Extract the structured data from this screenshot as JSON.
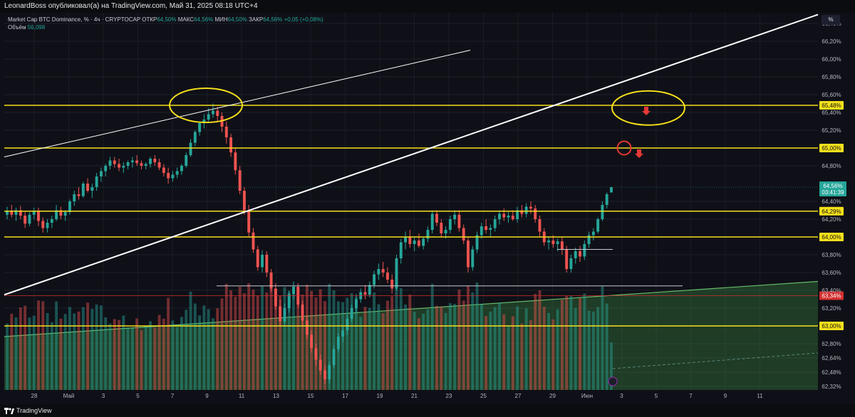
{
  "header": {
    "publish_line": "LeonardBoss опубликовал(а) на TradingView.com, Май 31, 2025 08:18 UTC+4"
  },
  "legend": {
    "symbol": "Market Cap BTC Dominance, % · 4ч · CRYPTOCAP",
    "open_label": "ОТКР",
    "open_value": "64,50%",
    "high_label": "МАКС",
    "high_value": "64,56%",
    "low_label": "МИН",
    "low_value": "64,50%",
    "close_label": "ЗАКР",
    "close_value": "64,56%",
    "change": "+0,05 (+0,08%)",
    "volume_label": "Объём",
    "volume_value": "56,098"
  },
  "unit_label": "%",
  "footer": {
    "brand": "TradingView"
  },
  "colors": {
    "background": "#0f1017",
    "up": "#26a69a",
    "down": "#ef5350",
    "horizontal_level": "#f5e01b",
    "trendline": "#ffffff",
    "support_zone": "#4caf50",
    "red_level": "#d32f2f",
    "price_badge": "#26a69a"
  },
  "chart_data": {
    "type": "candlestick",
    "title": "Market Cap BTC Dominance, % · 4ч · CRYPTOCAP",
    "y_unit": "%",
    "ylim": [
      62.28,
      66.52
    ],
    "y_ticks": [
      "66,40%",
      "66,20%",
      "66,00%",
      "65,80%",
      "65,60%",
      "65,40%",
      "65,20%",
      "64,80%",
      "64,40%",
      "64,20%",
      "63,80%",
      "63,60%",
      "63,40%",
      "63,20%",
      "62,80%",
      "62,64%",
      "62,48%",
      "62,32%"
    ],
    "x_ticks": [
      "28",
      "Май",
      "3",
      "5",
      "7",
      "9",
      "11",
      "13",
      "15",
      "17",
      "19",
      "21",
      "23",
      "25",
      "27",
      "29",
      "Июн",
      "3",
      "5",
      "7",
      "9",
      "11"
    ],
    "horizontal_levels": [
      {
        "value": 65.48,
        "label": "65,48%",
        "color": "#f5e01b"
      },
      {
        "value": 65.0,
        "label": "65,00%",
        "color": "#f5e01b"
      },
      {
        "value": 64.29,
        "label": "64,29%",
        "color": "#f5e01b"
      },
      {
        "value": 64.0,
        "label": "64,00%",
        "color": "#f5e01b"
      },
      {
        "value": 63.0,
        "label": "63,00%",
        "color": "#f5e01b"
      },
      {
        "value": 63.34,
        "label": "63,34%",
        "color": "#d32f2f"
      }
    ],
    "last_price": {
      "value": 64.56,
      "label": "64,56%",
      "countdown": "03:41:39"
    },
    "trendlines": [
      {
        "name": "main-ascending",
        "from": {
          "x": "Apr 26",
          "y": 63.35
        },
        "to": {
          "x": "Jun 11",
          "y": 66.5
        }
      },
      {
        "name": "upper-thin",
        "from": {
          "x": "Apr 26",
          "y": 64.9
        },
        "to": {
          "x": "May 24",
          "y": 66.1
        }
      }
    ],
    "support_zone_top": {
      "from": {
        "x": "Apr 26",
        "y": 62.88
      },
      "to": {
        "x": "Jun 11",
        "y": 63.5
      }
    },
    "series": [
      {
        "type": "candles",
        "ohlc": [
          [
            64.25,
            64.34,
            64.2,
            64.29
          ],
          [
            64.29,
            64.36,
            64.22,
            64.25
          ],
          [
            64.25,
            64.33,
            64.18,
            64.3
          ],
          [
            64.3,
            64.35,
            64.2,
            64.24
          ],
          [
            64.24,
            64.28,
            64.1,
            64.15
          ],
          [
            64.15,
            64.28,
            64.12,
            64.25
          ],
          [
            64.25,
            64.33,
            64.2,
            64.29
          ],
          [
            64.29,
            64.33,
            64.12,
            64.18
          ],
          [
            64.18,
            64.22,
            64.05,
            64.1
          ],
          [
            64.1,
            64.2,
            64.05,
            64.16
          ],
          [
            64.16,
            64.24,
            64.1,
            64.2
          ],
          [
            64.2,
            64.36,
            64.18,
            64.3
          ],
          [
            64.3,
            64.34,
            64.2,
            64.24
          ],
          [
            64.24,
            64.3,
            64.18,
            64.28
          ],
          [
            64.28,
            64.42,
            64.25,
            64.4
          ],
          [
            64.4,
            64.52,
            64.35,
            64.48
          ],
          [
            64.48,
            64.56,
            64.42,
            64.46
          ],
          [
            64.46,
            64.62,
            64.44,
            64.6
          ],
          [
            64.6,
            64.66,
            64.5,
            64.52
          ],
          [
            64.52,
            64.6,
            64.44,
            64.56
          ],
          [
            64.56,
            64.72,
            64.52,
            64.68
          ],
          [
            64.68,
            64.78,
            64.62,
            64.74
          ],
          [
            64.74,
            64.82,
            64.68,
            64.8
          ],
          [
            64.8,
            64.9,
            64.76,
            64.86
          ],
          [
            64.86,
            64.9,
            64.78,
            64.82
          ],
          [
            64.82,
            64.88,
            64.74,
            64.78
          ],
          [
            64.78,
            64.84,
            64.72,
            64.8
          ],
          [
            64.8,
            64.86,
            64.76,
            64.84
          ],
          [
            64.84,
            64.9,
            64.78,
            64.86
          ],
          [
            64.86,
            64.92,
            64.8,
            64.83
          ],
          [
            64.83,
            64.86,
            64.76,
            64.8
          ],
          [
            64.8,
            64.84,
            64.76,
            64.82
          ],
          [
            64.82,
            64.9,
            64.78,
            64.88
          ],
          [
            64.88,
            64.92,
            64.8,
            64.84
          ],
          [
            64.84,
            64.88,
            64.75,
            64.78
          ],
          [
            64.78,
            64.82,
            64.68,
            64.72
          ],
          [
            64.72,
            64.78,
            64.6,
            64.66
          ],
          [
            64.66,
            64.74,
            64.62,
            64.7
          ],
          [
            64.7,
            64.78,
            64.66,
            64.74
          ],
          [
            64.74,
            64.82,
            64.7,
            64.8
          ],
          [
            64.8,
            64.95,
            64.78,
            64.92
          ],
          [
            64.92,
            65.1,
            64.9,
            65.06
          ],
          [
            65.06,
            65.2,
            65.02,
            65.18
          ],
          [
            65.18,
            65.3,
            65.14,
            65.28
          ],
          [
            65.28,
            65.38,
            65.22,
            65.32
          ],
          [
            65.32,
            65.45,
            65.28,
            65.38
          ],
          [
            65.38,
            65.5,
            65.34,
            65.42
          ],
          [
            65.42,
            65.46,
            65.3,
            65.36
          ],
          [
            65.36,
            65.4,
            65.18,
            65.24
          ],
          [
            65.24,
            65.3,
            65.05,
            65.12
          ],
          [
            65.12,
            65.16,
            64.9,
            64.95
          ],
          [
            64.95,
            65.0,
            64.7,
            64.75
          ],
          [
            64.75,
            64.8,
            64.48,
            64.52
          ],
          [
            64.52,
            64.56,
            64.25,
            64.3
          ],
          [
            64.3,
            64.36,
            64.0,
            64.05
          ],
          [
            64.05,
            64.1,
            63.82,
            63.86
          ],
          [
            63.86,
            63.9,
            63.62,
            63.66
          ],
          [
            63.66,
            63.85,
            63.6,
            63.8
          ],
          [
            63.8,
            63.84,
            63.55,
            63.6
          ],
          [
            63.6,
            63.64,
            63.38,
            63.42
          ],
          [
            63.42,
            63.48,
            63.18,
            63.22
          ],
          [
            63.22,
            63.3,
            63.0,
            63.05
          ],
          [
            63.05,
            63.25,
            63.02,
            63.2
          ],
          [
            63.2,
            63.4,
            63.15,
            63.36
          ],
          [
            63.36,
            63.5,
            63.3,
            63.44
          ],
          [
            63.44,
            63.48,
            63.2,
            63.24
          ],
          [
            63.24,
            63.28,
            63.0,
            63.06
          ],
          [
            63.06,
            63.12,
            62.85,
            62.9
          ],
          [
            62.9,
            62.95,
            62.7,
            62.75
          ],
          [
            62.75,
            62.8,
            62.55,
            62.62
          ],
          [
            62.62,
            62.68,
            62.45,
            62.5
          ],
          [
            62.5,
            62.56,
            62.35,
            62.4
          ],
          [
            62.4,
            62.6,
            62.35,
            62.56
          ],
          [
            62.56,
            62.78,
            62.52,
            62.74
          ],
          [
            62.74,
            62.92,
            62.7,
            62.88
          ],
          [
            62.88,
            63.0,
            62.82,
            62.95
          ],
          [
            62.95,
            63.12,
            62.9,
            63.08
          ],
          [
            63.08,
            63.24,
            63.04,
            63.2
          ],
          [
            63.2,
            63.36,
            63.15,
            63.3
          ],
          [
            63.3,
            63.42,
            63.26,
            63.38
          ],
          [
            63.38,
            63.46,
            63.3,
            63.35
          ],
          [
            63.35,
            63.5,
            63.32,
            63.46
          ],
          [
            63.46,
            63.62,
            63.42,
            63.58
          ],
          [
            63.58,
            63.7,
            63.52,
            63.64
          ],
          [
            63.64,
            63.72,
            63.55,
            63.6
          ],
          [
            63.6,
            63.66,
            63.48,
            63.52
          ],
          [
            63.52,
            63.58,
            63.36,
            63.42
          ],
          [
            63.42,
            63.8,
            63.4,
            63.76
          ],
          [
            63.76,
            63.98,
            63.7,
            63.94
          ],
          [
            63.94,
            64.06,
            63.86,
            64.0
          ],
          [
            64.0,
            64.08,
            63.88,
            63.92
          ],
          [
            63.92,
            64.0,
            63.84,
            63.96
          ],
          [
            63.96,
            64.04,
            63.88,
            63.9
          ],
          [
            63.9,
            64.0,
            63.86,
            63.98
          ],
          [
            63.98,
            64.12,
            63.94,
            64.08
          ],
          [
            64.08,
            64.3,
            64.04,
            64.26
          ],
          [
            64.26,
            64.3,
            64.12,
            64.16
          ],
          [
            64.16,
            64.2,
            64.0,
            64.04
          ],
          [
            64.04,
            64.12,
            63.98,
            64.08
          ],
          [
            64.08,
            64.24,
            64.04,
            64.2
          ],
          [
            64.2,
            64.3,
            64.14,
            64.25
          ],
          [
            64.25,
            64.3,
            64.06,
            64.1
          ],
          [
            64.1,
            64.14,
            63.92,
            63.96
          ],
          [
            63.96,
            64.0,
            63.6,
            63.66
          ],
          [
            63.66,
            63.9,
            63.62,
            63.86
          ],
          [
            63.86,
            64.06,
            63.82,
            64.02
          ],
          [
            64.02,
            64.16,
            63.98,
            64.12
          ],
          [
            64.12,
            64.2,
            64.04,
            64.08
          ],
          [
            64.08,
            64.14,
            64.0,
            64.1
          ],
          [
            64.1,
            64.24,
            64.06,
            64.2
          ],
          [
            64.2,
            64.3,
            64.14,
            64.26
          ],
          [
            64.26,
            64.32,
            64.18,
            64.22
          ],
          [
            64.22,
            64.28,
            64.16,
            64.24
          ],
          [
            64.24,
            64.3,
            64.18,
            64.2
          ],
          [
            64.2,
            64.34,
            64.16,
            64.3
          ],
          [
            64.3,
            64.36,
            64.22,
            64.26
          ],
          [
            64.26,
            64.38,
            64.22,
            64.34
          ],
          [
            64.34,
            64.4,
            64.26,
            64.32
          ],
          [
            64.32,
            64.36,
            64.16,
            64.2
          ],
          [
            64.2,
            64.24,
            64.0,
            64.06
          ],
          [
            64.06,
            64.1,
            63.9,
            63.94
          ],
          [
            63.94,
            64.0,
            63.86,
            63.96
          ],
          [
            63.96,
            64.02,
            63.88,
            63.92
          ],
          [
            63.92,
            63.98,
            63.84,
            63.95
          ],
          [
            63.95,
            64.0,
            63.8,
            63.86
          ],
          [
            63.86,
            63.9,
            63.6,
            63.64
          ],
          [
            63.64,
            63.8,
            63.6,
            63.76
          ],
          [
            63.76,
            63.88,
            63.7,
            63.84
          ],
          [
            63.84,
            63.9,
            63.72,
            63.78
          ],
          [
            63.78,
            63.96,
            63.74,
            63.92
          ],
          [
            63.92,
            64.06,
            63.88,
            64.02
          ],
          [
            64.02,
            64.1,
            63.96,
            64.06
          ],
          [
            64.06,
            64.22,
            64.04,
            64.2
          ],
          [
            64.2,
            64.4,
            64.18,
            64.36
          ],
          [
            64.36,
            64.5,
            64.32,
            64.48
          ],
          [
            64.5,
            64.56,
            64.5,
            64.56
          ]
        ]
      }
    ]
  }
}
